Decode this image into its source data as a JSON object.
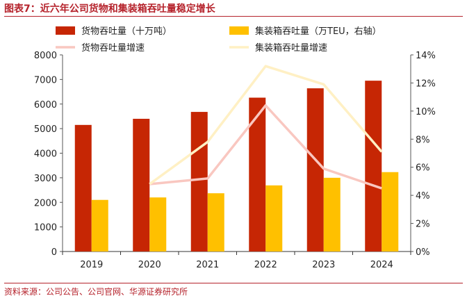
{
  "title": "图表7：近六年公司货物和集装箱吞吐量稳定增长",
  "source": "资料来源：公司公告、公司官网、华源证券研究所",
  "chart_data": {
    "type": "bar+line",
    "categories": [
      "2019",
      "2020",
      "2021",
      "2022",
      "2023",
      "2024"
    ],
    "series": [
      {
        "name": "货物吞吐量（十万吨）",
        "type": "bar",
        "axis": "left",
        "color": "#c62604",
        "values": [
          5150,
          5400,
          5680,
          6260,
          6640,
          6950
        ]
      },
      {
        "name": "集装箱吞吐量（万TEU，右轴）",
        "type": "bar",
        "axis": "left",
        "color": "#ffc000",
        "values": [
          2100,
          2200,
          2370,
          2690,
          3000,
          3230
        ]
      },
      {
        "name": "货物吞吐量增速",
        "type": "line",
        "axis": "right",
        "color": "#f9c7c0",
        "values": [
          null,
          4.8,
          5.2,
          10.4,
          5.9,
          4.5
        ]
      },
      {
        "name": "集装箱吞吐量增速",
        "type": "line",
        "axis": "right",
        "color": "#fff0c4",
        "values": [
          null,
          4.8,
          7.8,
          13.2,
          11.9,
          7.1
        ]
      }
    ],
    "ylim_left": [
      0,
      8000
    ],
    "yticks_left": [
      "0",
      "1000",
      "2000",
      "3000",
      "4000",
      "5000",
      "6000",
      "7000",
      "8000"
    ],
    "ylim_right": [
      0,
      14
    ],
    "yticks_right": [
      "0%",
      "2%",
      "4%",
      "6%",
      "8%",
      "10%",
      "12%",
      "14%"
    ],
    "legend": "top"
  }
}
